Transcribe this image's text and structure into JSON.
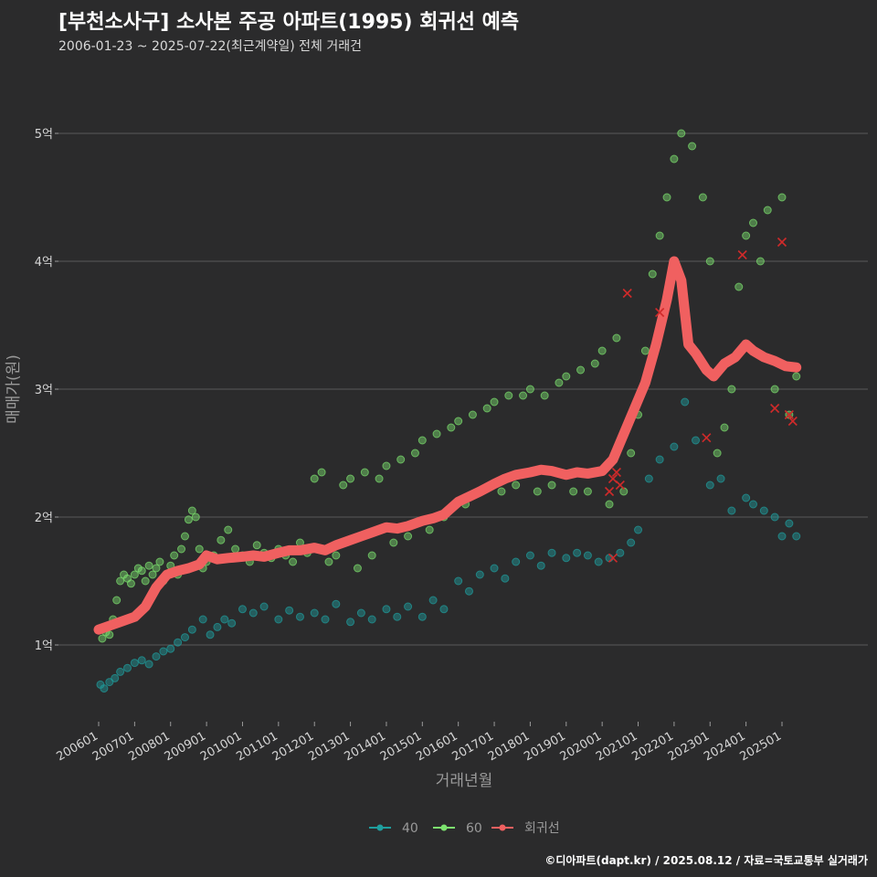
{
  "header": {
    "title": "[부천소사구] 소사본 주공 아파트(1995) 회귀선 예측",
    "subtitle": "2006-01-23 ~ 2025-07-22(최근계약일) 전체 거래건"
  },
  "caption": "©디아파트(dapt.kr) / 2025.08.12 / 자료=국토교통부 실거래가",
  "colors": {
    "background": "#2b2b2c",
    "grid": "#5a5a5a",
    "series_40": "#1f9e9e",
    "series_60": "#7de36f",
    "regression": "#f06060",
    "forecast_marker": "#d02a2a"
  },
  "chart_data": {
    "type": "scatter",
    "title": "[부천소사구] 소사본 주공 아파트(1995) 회귀선 예측",
    "xlabel": "거래년월",
    "ylabel": "매매가(원)",
    "ylim": [
      0.45,
      5.5
    ],
    "xlim": [
      2005.8,
      2025.9
    ],
    "y_unit": "억",
    "y_ticks": [
      {
        "value": 1,
        "label": "1억"
      },
      {
        "value": 2,
        "label": "2억"
      },
      {
        "value": 3,
        "label": "3억"
      },
      {
        "value": 4,
        "label": "4억"
      },
      {
        "value": 5,
        "label": "5억"
      }
    ],
    "x_ticks": [
      {
        "value": 2006,
        "label": "200601"
      },
      {
        "value": 2007,
        "label": "200701"
      },
      {
        "value": 2008,
        "label": "200801"
      },
      {
        "value": 2009,
        "label": "200901"
      },
      {
        "value": 2010,
        "label": "201001"
      },
      {
        "value": 2011,
        "label": "201101"
      },
      {
        "value": 2012,
        "label": "201201"
      },
      {
        "value": 2013,
        "label": "201301"
      },
      {
        "value": 2014,
        "label": "201401"
      },
      {
        "value": 2015,
        "label": "201501"
      },
      {
        "value": 2016,
        "label": "201601"
      },
      {
        "value": 2017,
        "label": "201701"
      },
      {
        "value": 2018,
        "label": "201801"
      },
      {
        "value": 2019,
        "label": "201901"
      },
      {
        "value": 2020,
        "label": "202001"
      },
      {
        "value": 2021,
        "label": "202101"
      },
      {
        "value": 2022,
        "label": "202201"
      },
      {
        "value": 2023,
        "label": "202301"
      },
      {
        "value": 2024,
        "label": "202401"
      },
      {
        "value": 2025,
        "label": "202501"
      }
    ],
    "legend": {
      "position": "bottom",
      "entries": [
        {
          "name": "40",
          "color": "#1f9e9e"
        },
        {
          "name": "60",
          "color": "#7de36f"
        },
        {
          "name": "회귀선",
          "color": "#f06060"
        }
      ]
    },
    "series": [
      {
        "name": "40",
        "x": [
          2006.05,
          2006.15,
          2006.3,
          2006.45,
          2006.6,
          2006.8,
          2007.0,
          2007.2,
          2007.4,
          2007.6,
          2007.8,
          2008.0,
          2008.2,
          2008.4,
          2008.6,
          2008.9,
          2009.1,
          2009.3,
          2009.5,
          2009.7,
          2010.0,
          2010.3,
          2010.6,
          2011.0,
          2011.3,
          2011.6,
          2012.0,
          2012.3,
          2012.6,
          2013.0,
          2013.3,
          2013.6,
          2014.0,
          2014.3,
          2014.6,
          2015.0,
          2015.3,
          2015.6,
          2016.0,
          2016.3,
          2016.6,
          2017.0,
          2017.3,
          2017.6,
          2018.0,
          2018.3,
          2018.6,
          2019.0,
          2019.3,
          2019.6,
          2019.9,
          2020.2,
          2020.5,
          2020.8,
          2021.0,
          2021.3,
          2021.6,
          2022.0,
          2022.3,
          2022.6,
          2023.0,
          2023.3,
          2023.6,
          2024.0,
          2024.2,
          2024.5,
          2024.8,
          2025.0,
          2025.2,
          2025.4
        ],
        "y": [
          0.69,
          0.66,
          0.71,
          0.74,
          0.79,
          0.82,
          0.86,
          0.88,
          0.85,
          0.91,
          0.95,
          0.97,
          1.02,
          1.06,
          1.12,
          1.2,
          1.08,
          1.14,
          1.2,
          1.17,
          1.28,
          1.25,
          1.3,
          1.2,
          1.27,
          1.22,
          1.25,
          1.2,
          1.32,
          1.18,
          1.25,
          1.2,
          1.28,
          1.22,
          1.3,
          1.22,
          1.35,
          1.28,
          1.5,
          1.42,
          1.55,
          1.6,
          1.52,
          1.65,
          1.7,
          1.62,
          1.72,
          1.68,
          1.72,
          1.7,
          1.65,
          1.68,
          1.72,
          1.8,
          1.9,
          2.3,
          2.45,
          2.55,
          2.9,
          2.6,
          2.25,
          2.3,
          2.05,
          2.15,
          2.1,
          2.05,
          2.0,
          1.85,
          1.95,
          1.85
        ]
      },
      {
        "name": "60",
        "x": [
          2006.1,
          2006.2,
          2006.3,
          2006.4,
          2006.5,
          2006.6,
          2006.7,
          2006.8,
          2006.9,
          2007.0,
          2007.1,
          2007.2,
          2007.3,
          2007.4,
          2007.5,
          2007.6,
          2007.7,
          2007.8,
          2007.9,
          2008.0,
          2008.1,
          2008.2,
          2008.3,
          2008.4,
          2008.5,
          2008.6,
          2008.7,
          2008.8,
          2008.9,
          2009.0,
          2009.2,
          2009.4,
          2009.6,
          2009.8,
          2010.0,
          2010.2,
          2010.4,
          2010.6,
          2010.8,
          2011.0,
          2011.2,
          2011.4,
          2011.6,
          2011.8,
          2012.0,
          2012.2,
          2012.4,
          2012.6,
          2012.8,
          2013.0,
          2013.2,
          2013.4,
          2013.6,
          2013.8,
          2014.0,
          2014.2,
          2014.4,
          2014.6,
          2014.8,
          2015.0,
          2015.2,
          2015.4,
          2015.6,
          2015.8,
          2016.0,
          2016.2,
          2016.4,
          2016.6,
          2016.8,
          2017.0,
          2017.2,
          2017.4,
          2017.6,
          2017.8,
          2018.0,
          2018.2,
          2018.4,
          2018.6,
          2018.8,
          2019.0,
          2019.2,
          2019.4,
          2019.6,
          2019.8,
          2020.0,
          2020.2,
          2020.4,
          2020.6,
          2020.8,
          2021.0,
          2021.2,
          2021.4,
          2021.6,
          2021.8,
          2022.0,
          2022.2,
          2022.5,
          2022.8,
          2023.0,
          2023.2,
          2023.4,
          2023.6,
          2023.8,
          2024.0,
          2024.2,
          2024.4,
          2024.6,
          2024.8,
          2025.0,
          2025.2,
          2025.4
        ],
        "y": [
          1.05,
          1.1,
          1.08,
          1.2,
          1.35,
          1.5,
          1.55,
          1.52,
          1.48,
          1.55,
          1.6,
          1.58,
          1.5,
          1.62,
          1.55,
          1.6,
          1.65,
          1.5,
          1.55,
          1.62,
          1.7,
          1.55,
          1.75,
          1.85,
          1.98,
          2.05,
          2.0,
          1.75,
          1.6,
          1.65,
          1.7,
          1.82,
          1.9,
          1.75,
          1.7,
          1.65,
          1.78,
          1.72,
          1.68,
          1.75,
          1.7,
          1.65,
          1.8,
          1.72,
          2.3,
          2.35,
          1.65,
          1.7,
          2.25,
          2.3,
          1.6,
          2.35,
          1.7,
          2.3,
          2.4,
          1.8,
          2.45,
          1.85,
          2.5,
          2.6,
          1.9,
          2.65,
          2.0,
          2.7,
          2.75,
          2.1,
          2.8,
          2.2,
          2.85,
          2.9,
          2.2,
          2.95,
          2.25,
          2.95,
          3.0,
          2.2,
          2.95,
          2.25,
          3.05,
          3.1,
          2.2,
          3.15,
          2.2,
          3.2,
          3.3,
          2.1,
          3.4,
          2.2,
          2.5,
          2.8,
          3.3,
          3.9,
          4.2,
          4.5,
          4.8,
          5.0,
          4.9,
          4.5,
          4.0,
          2.5,
          2.7,
          3.0,
          3.8,
          4.2,
          4.3,
          4.0,
          4.4,
          3.0,
          4.5,
          2.8,
          3.1
        ]
      },
      {
        "name": "회귀선",
        "x": [
          2006.0,
          2006.3,
          2006.6,
          2007.0,
          2007.3,
          2007.6,
          2007.9,
          2008.2,
          2008.5,
          2008.8,
          2009.0,
          2009.3,
          2009.6,
          2010.0,
          2010.3,
          2010.6,
          2011.0,
          2011.3,
          2011.6,
          2012.0,
          2012.3,
          2012.6,
          2013.0,
          2013.3,
          2013.6,
          2014.0,
          2014.3,
          2014.6,
          2015.0,
          2015.3,
          2015.6,
          2016.0,
          2016.3,
          2016.6,
          2017.0,
          2017.3,
          2017.6,
          2018.0,
          2018.3,
          2018.6,
          2019.0,
          2019.3,
          2019.6,
          2020.0,
          2020.3,
          2020.6,
          2020.9,
          2021.2,
          2021.5,
          2021.8,
          2022.0,
          2022.2,
          2022.4,
          2022.6,
          2022.9,
          2023.1,
          2023.4,
          2023.7,
          2024.0,
          2024.2,
          2024.5,
          2024.8,
          2025.1,
          2025.4
        ],
        "y": [
          1.12,
          1.15,
          1.18,
          1.22,
          1.3,
          1.45,
          1.55,
          1.58,
          1.6,
          1.63,
          1.7,
          1.67,
          1.68,
          1.69,
          1.7,
          1.69,
          1.72,
          1.74,
          1.74,
          1.76,
          1.74,
          1.78,
          1.82,
          1.85,
          1.88,
          1.92,
          1.91,
          1.93,
          1.97,
          1.99,
          2.02,
          2.12,
          2.16,
          2.2,
          2.26,
          2.3,
          2.33,
          2.35,
          2.37,
          2.36,
          2.33,
          2.35,
          2.34,
          2.36,
          2.45,
          2.65,
          2.85,
          3.05,
          3.35,
          3.7,
          4.0,
          3.85,
          3.35,
          3.28,
          3.15,
          3.1,
          3.2,
          3.25,
          3.35,
          3.3,
          3.25,
          3.22,
          3.18,
          3.17
        ]
      }
    ],
    "forecast_markers": {
      "x": [
        2020.2,
        2020.3,
        2020.4,
        2020.5,
        2020.7,
        2021.6,
        2022.9,
        2023.9,
        2024.8,
        2025.0,
        2025.2,
        2025.3,
        2020.3
      ],
      "y": [
        2.2,
        2.3,
        2.35,
        2.25,
        3.75,
        3.6,
        2.62,
        4.05,
        2.85,
        4.15,
        2.8,
        2.75,
        1.68
      ]
    }
  }
}
